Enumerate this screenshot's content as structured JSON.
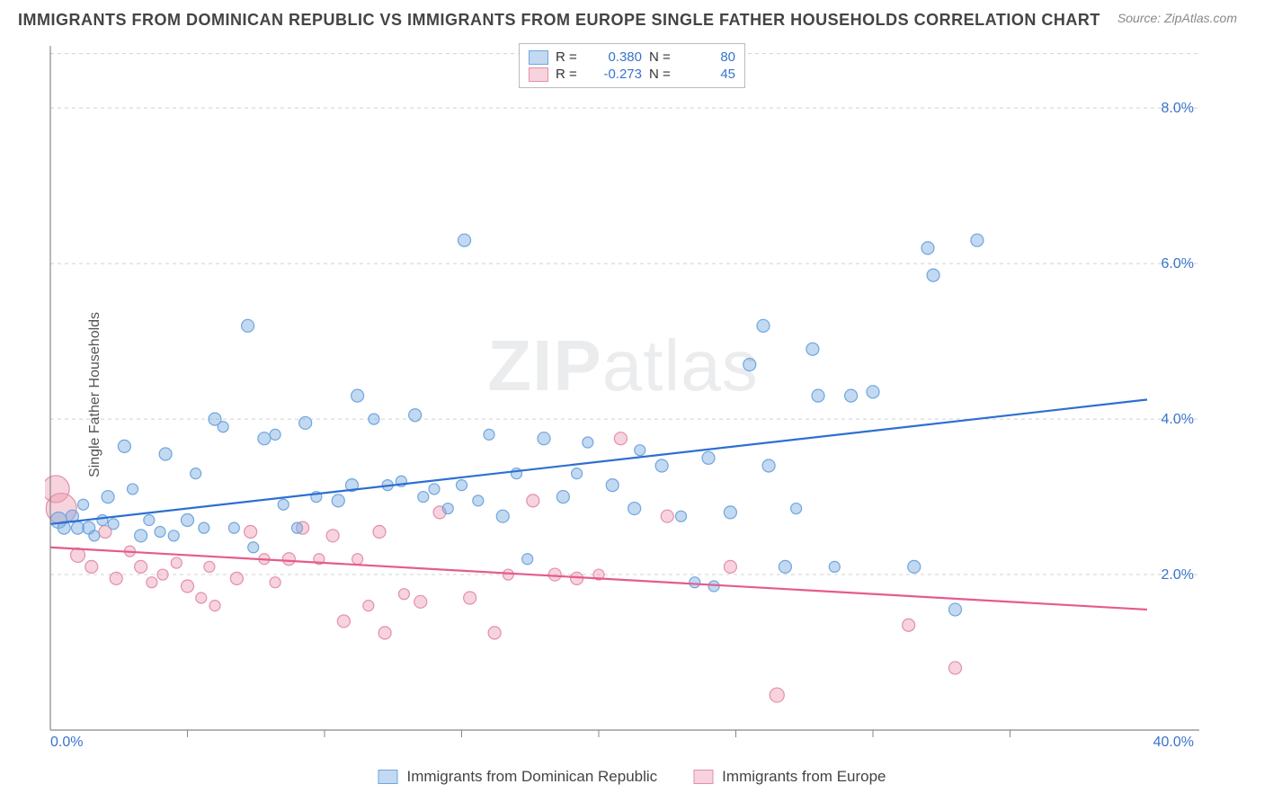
{
  "title": "IMMIGRANTS FROM DOMINICAN REPUBLIC VS IMMIGRANTS FROM EUROPE SINGLE FATHER HOUSEHOLDS CORRELATION CHART",
  "source": "Source: ZipAtlas.com",
  "watermark": "ZIPatlas",
  "ylabel": "Single Father Households",
  "xlim": [
    0,
    40
  ],
  "ylim": [
    0,
    8.8
  ],
  "x_ticks_major": [
    0,
    40
  ],
  "x_tick_labels": [
    "0.0%",
    "40.0%"
  ],
  "x_ticks_minor": [
    5,
    10,
    15,
    20,
    25,
    30,
    35
  ],
  "y_grid": [
    2,
    4,
    6,
    8
  ],
  "y_tick_labels": [
    "2.0%",
    "4.0%",
    "6.0%",
    "8.0%"
  ],
  "grid_color": "#d0d0d0",
  "axis_color": "#888888",
  "background": "#ffffff",
  "series": {
    "dr": {
      "label": "Immigrants from Dominican Republic",
      "color_fill": "rgba(120,170,225,0.45)",
      "color_stroke": "#6fa6de",
      "trend_color": "#2d6fd1",
      "R": "0.380",
      "N": "80",
      "trend": {
        "x1": 0,
        "y1": 2.65,
        "x2": 40,
        "y2": 4.25
      },
      "points": [
        {
          "x": 0.3,
          "y": 2.7,
          "r": 9
        },
        {
          "x": 0.5,
          "y": 2.6,
          "r": 7
        },
        {
          "x": 0.8,
          "y": 2.75,
          "r": 7
        },
        {
          "x": 1.0,
          "y": 2.6,
          "r": 7
        },
        {
          "x": 1.2,
          "y": 2.9,
          "r": 6
        },
        {
          "x": 1.4,
          "y": 2.6,
          "r": 7
        },
        {
          "x": 1.6,
          "y": 2.5,
          "r": 6
        },
        {
          "x": 1.9,
          "y": 2.7,
          "r": 6
        },
        {
          "x": 2.1,
          "y": 3.0,
          "r": 7
        },
        {
          "x": 2.3,
          "y": 2.65,
          "r": 6
        },
        {
          "x": 2.7,
          "y": 3.65,
          "r": 7
        },
        {
          "x": 3.0,
          "y": 3.1,
          "r": 6
        },
        {
          "x": 3.3,
          "y": 2.5,
          "r": 7
        },
        {
          "x": 3.6,
          "y": 2.7,
          "r": 6
        },
        {
          "x": 4.0,
          "y": 2.55,
          "r": 6
        },
        {
          "x": 4.2,
          "y": 3.55,
          "r": 7
        },
        {
          "x": 4.5,
          "y": 2.5,
          "r": 6
        },
        {
          "x": 5.0,
          "y": 2.7,
          "r": 7
        },
        {
          "x": 5.3,
          "y": 3.3,
          "r": 6
        },
        {
          "x": 5.6,
          "y": 2.6,
          "r": 6
        },
        {
          "x": 6.0,
          "y": 4.0,
          "r": 7
        },
        {
          "x": 6.3,
          "y": 3.9,
          "r": 6
        },
        {
          "x": 6.7,
          "y": 2.6,
          "r": 6
        },
        {
          "x": 7.2,
          "y": 5.2,
          "r": 7
        },
        {
          "x": 7.4,
          "y": 2.35,
          "r": 6
        },
        {
          "x": 7.8,
          "y": 3.75,
          "r": 7
        },
        {
          "x": 8.2,
          "y": 3.8,
          "r": 6
        },
        {
          "x": 8.5,
          "y": 2.9,
          "r": 6
        },
        {
          "x": 9.0,
          "y": 2.6,
          "r": 6
        },
        {
          "x": 9.3,
          "y": 3.95,
          "r": 7
        },
        {
          "x": 9.7,
          "y": 3.0,
          "r": 6
        },
        {
          "x": 10.5,
          "y": 2.95,
          "r": 7
        },
        {
          "x": 11.0,
          "y": 3.15,
          "r": 7
        },
        {
          "x": 11.2,
          "y": 4.3,
          "r": 7
        },
        {
          "x": 11.8,
          "y": 4.0,
          "r": 6
        },
        {
          "x": 12.3,
          "y": 3.15,
          "r": 6
        },
        {
          "x": 12.8,
          "y": 3.2,
          "r": 6
        },
        {
          "x": 13.3,
          "y": 4.05,
          "r": 7
        },
        {
          "x": 13.6,
          "y": 3.0,
          "r": 6
        },
        {
          "x": 14.0,
          "y": 3.1,
          "r": 6
        },
        {
          "x": 14.5,
          "y": 2.85,
          "r": 6
        },
        {
          "x": 15.0,
          "y": 3.15,
          "r": 6
        },
        {
          "x": 15.1,
          "y": 6.3,
          "r": 7
        },
        {
          "x": 15.6,
          "y": 2.95,
          "r": 6
        },
        {
          "x": 16.0,
          "y": 3.8,
          "r": 6
        },
        {
          "x": 16.5,
          "y": 2.75,
          "r": 7
        },
        {
          "x": 17.0,
          "y": 3.3,
          "r": 6
        },
        {
          "x": 17.4,
          "y": 2.2,
          "r": 6
        },
        {
          "x": 18.0,
          "y": 3.75,
          "r": 7
        },
        {
          "x": 18.7,
          "y": 3.0,
          "r": 7
        },
        {
          "x": 19.2,
          "y": 3.3,
          "r": 6
        },
        {
          "x": 19.6,
          "y": 3.7,
          "r": 6
        },
        {
          "x": 20.5,
          "y": 3.15,
          "r": 7
        },
        {
          "x": 21.3,
          "y": 2.85,
          "r": 7
        },
        {
          "x": 21.5,
          "y": 3.6,
          "r": 6
        },
        {
          "x": 22.3,
          "y": 3.4,
          "r": 7
        },
        {
          "x": 23.0,
          "y": 2.75,
          "r": 6
        },
        {
          "x": 23.5,
          "y": 1.9,
          "r": 6
        },
        {
          "x": 24.0,
          "y": 3.5,
          "r": 7
        },
        {
          "x": 24.2,
          "y": 1.85,
          "r": 6
        },
        {
          "x": 24.8,
          "y": 2.8,
          "r": 7
        },
        {
          "x": 25.5,
          "y": 4.7,
          "r": 7
        },
        {
          "x": 26.0,
          "y": 5.2,
          "r": 7
        },
        {
          "x": 26.2,
          "y": 3.4,
          "r": 7
        },
        {
          "x": 26.8,
          "y": 2.1,
          "r": 7
        },
        {
          "x": 27.2,
          "y": 2.85,
          "r": 6
        },
        {
          "x": 27.8,
          "y": 4.9,
          "r": 7
        },
        {
          "x": 28.0,
          "y": 4.3,
          "r": 7
        },
        {
          "x": 28.6,
          "y": 2.1,
          "r": 6
        },
        {
          "x": 29.2,
          "y": 4.3,
          "r": 7
        },
        {
          "x": 30.0,
          "y": 4.35,
          "r": 7
        },
        {
          "x": 31.5,
          "y": 2.1,
          "r": 7
        },
        {
          "x": 32.0,
          "y": 6.2,
          "r": 7
        },
        {
          "x": 32.2,
          "y": 5.85,
          "r": 7
        },
        {
          "x": 33.0,
          "y": 1.55,
          "r": 7
        },
        {
          "x": 33.8,
          "y": 6.3,
          "r": 7
        }
      ]
    },
    "eu": {
      "label": "Immigrants from Europe",
      "color_fill": "rgba(235,150,175,0.42)",
      "color_stroke": "#e38fab",
      "trend_color": "#e65a8e",
      "R": "-0.273",
      "N": "45",
      "trend": {
        "x1": 0,
        "y1": 2.35,
        "x2": 40,
        "y2": 1.55
      },
      "points": [
        {
          "x": 0.2,
          "y": 3.1,
          "r": 15
        },
        {
          "x": 0.4,
          "y": 2.85,
          "r": 17
        },
        {
          "x": 1.0,
          "y": 2.25,
          "r": 8
        },
        {
          "x": 1.5,
          "y": 2.1,
          "r": 7
        },
        {
          "x": 2.0,
          "y": 2.55,
          "r": 7
        },
        {
          "x": 2.4,
          "y": 1.95,
          "r": 7
        },
        {
          "x": 2.9,
          "y": 2.3,
          "r": 6
        },
        {
          "x": 3.3,
          "y": 2.1,
          "r": 7
        },
        {
          "x": 3.7,
          "y": 1.9,
          "r": 6
        },
        {
          "x": 4.1,
          "y": 2.0,
          "r": 6
        },
        {
          "x": 4.6,
          "y": 2.15,
          "r": 6
        },
        {
          "x": 5.0,
          "y": 1.85,
          "r": 7
        },
        {
          "x": 5.5,
          "y": 1.7,
          "r": 6
        },
        {
          "x": 5.8,
          "y": 2.1,
          "r": 6
        },
        {
          "x": 6.0,
          "y": 1.6,
          "r": 6
        },
        {
          "x": 6.8,
          "y": 1.95,
          "r": 7
        },
        {
          "x": 7.3,
          "y": 2.55,
          "r": 7
        },
        {
          "x": 7.8,
          "y": 2.2,
          "r": 6
        },
        {
          "x": 8.2,
          "y": 1.9,
          "r": 6
        },
        {
          "x": 8.7,
          "y": 2.2,
          "r": 7
        },
        {
          "x": 9.2,
          "y": 2.6,
          "r": 7
        },
        {
          "x": 9.8,
          "y": 2.2,
          "r": 6
        },
        {
          "x": 10.3,
          "y": 2.5,
          "r": 7
        },
        {
          "x": 10.7,
          "y": 1.4,
          "r": 7
        },
        {
          "x": 11.2,
          "y": 2.2,
          "r": 6
        },
        {
          "x": 11.6,
          "y": 1.6,
          "r": 6
        },
        {
          "x": 12.0,
          "y": 2.55,
          "r": 7
        },
        {
          "x": 12.2,
          "y": 1.25,
          "r": 7
        },
        {
          "x": 12.9,
          "y": 1.75,
          "r": 6
        },
        {
          "x": 13.5,
          "y": 1.65,
          "r": 7
        },
        {
          "x": 14.2,
          "y": 2.8,
          "r": 7
        },
        {
          "x": 15.3,
          "y": 1.7,
          "r": 7
        },
        {
          "x": 16.2,
          "y": 1.25,
          "r": 7
        },
        {
          "x": 16.7,
          "y": 2.0,
          "r": 6
        },
        {
          "x": 17.6,
          "y": 2.95,
          "r": 7
        },
        {
          "x": 18.4,
          "y": 2.0,
          "r": 7
        },
        {
          "x": 19.2,
          "y": 1.95,
          "r": 7
        },
        {
          "x": 20.0,
          "y": 2.0,
          "r": 6
        },
        {
          "x": 20.8,
          "y": 3.75,
          "r": 7
        },
        {
          "x": 22.5,
          "y": 2.75,
          "r": 7
        },
        {
          "x": 24.8,
          "y": 2.1,
          "r": 7
        },
        {
          "x": 26.5,
          "y": 0.45,
          "r": 8
        },
        {
          "x": 31.3,
          "y": 1.35,
          "r": 7
        },
        {
          "x": 33.0,
          "y": 0.8,
          "r": 7
        }
      ]
    }
  },
  "legend_bottom": [
    {
      "key": "dr"
    },
    {
      "key": "eu"
    }
  ]
}
